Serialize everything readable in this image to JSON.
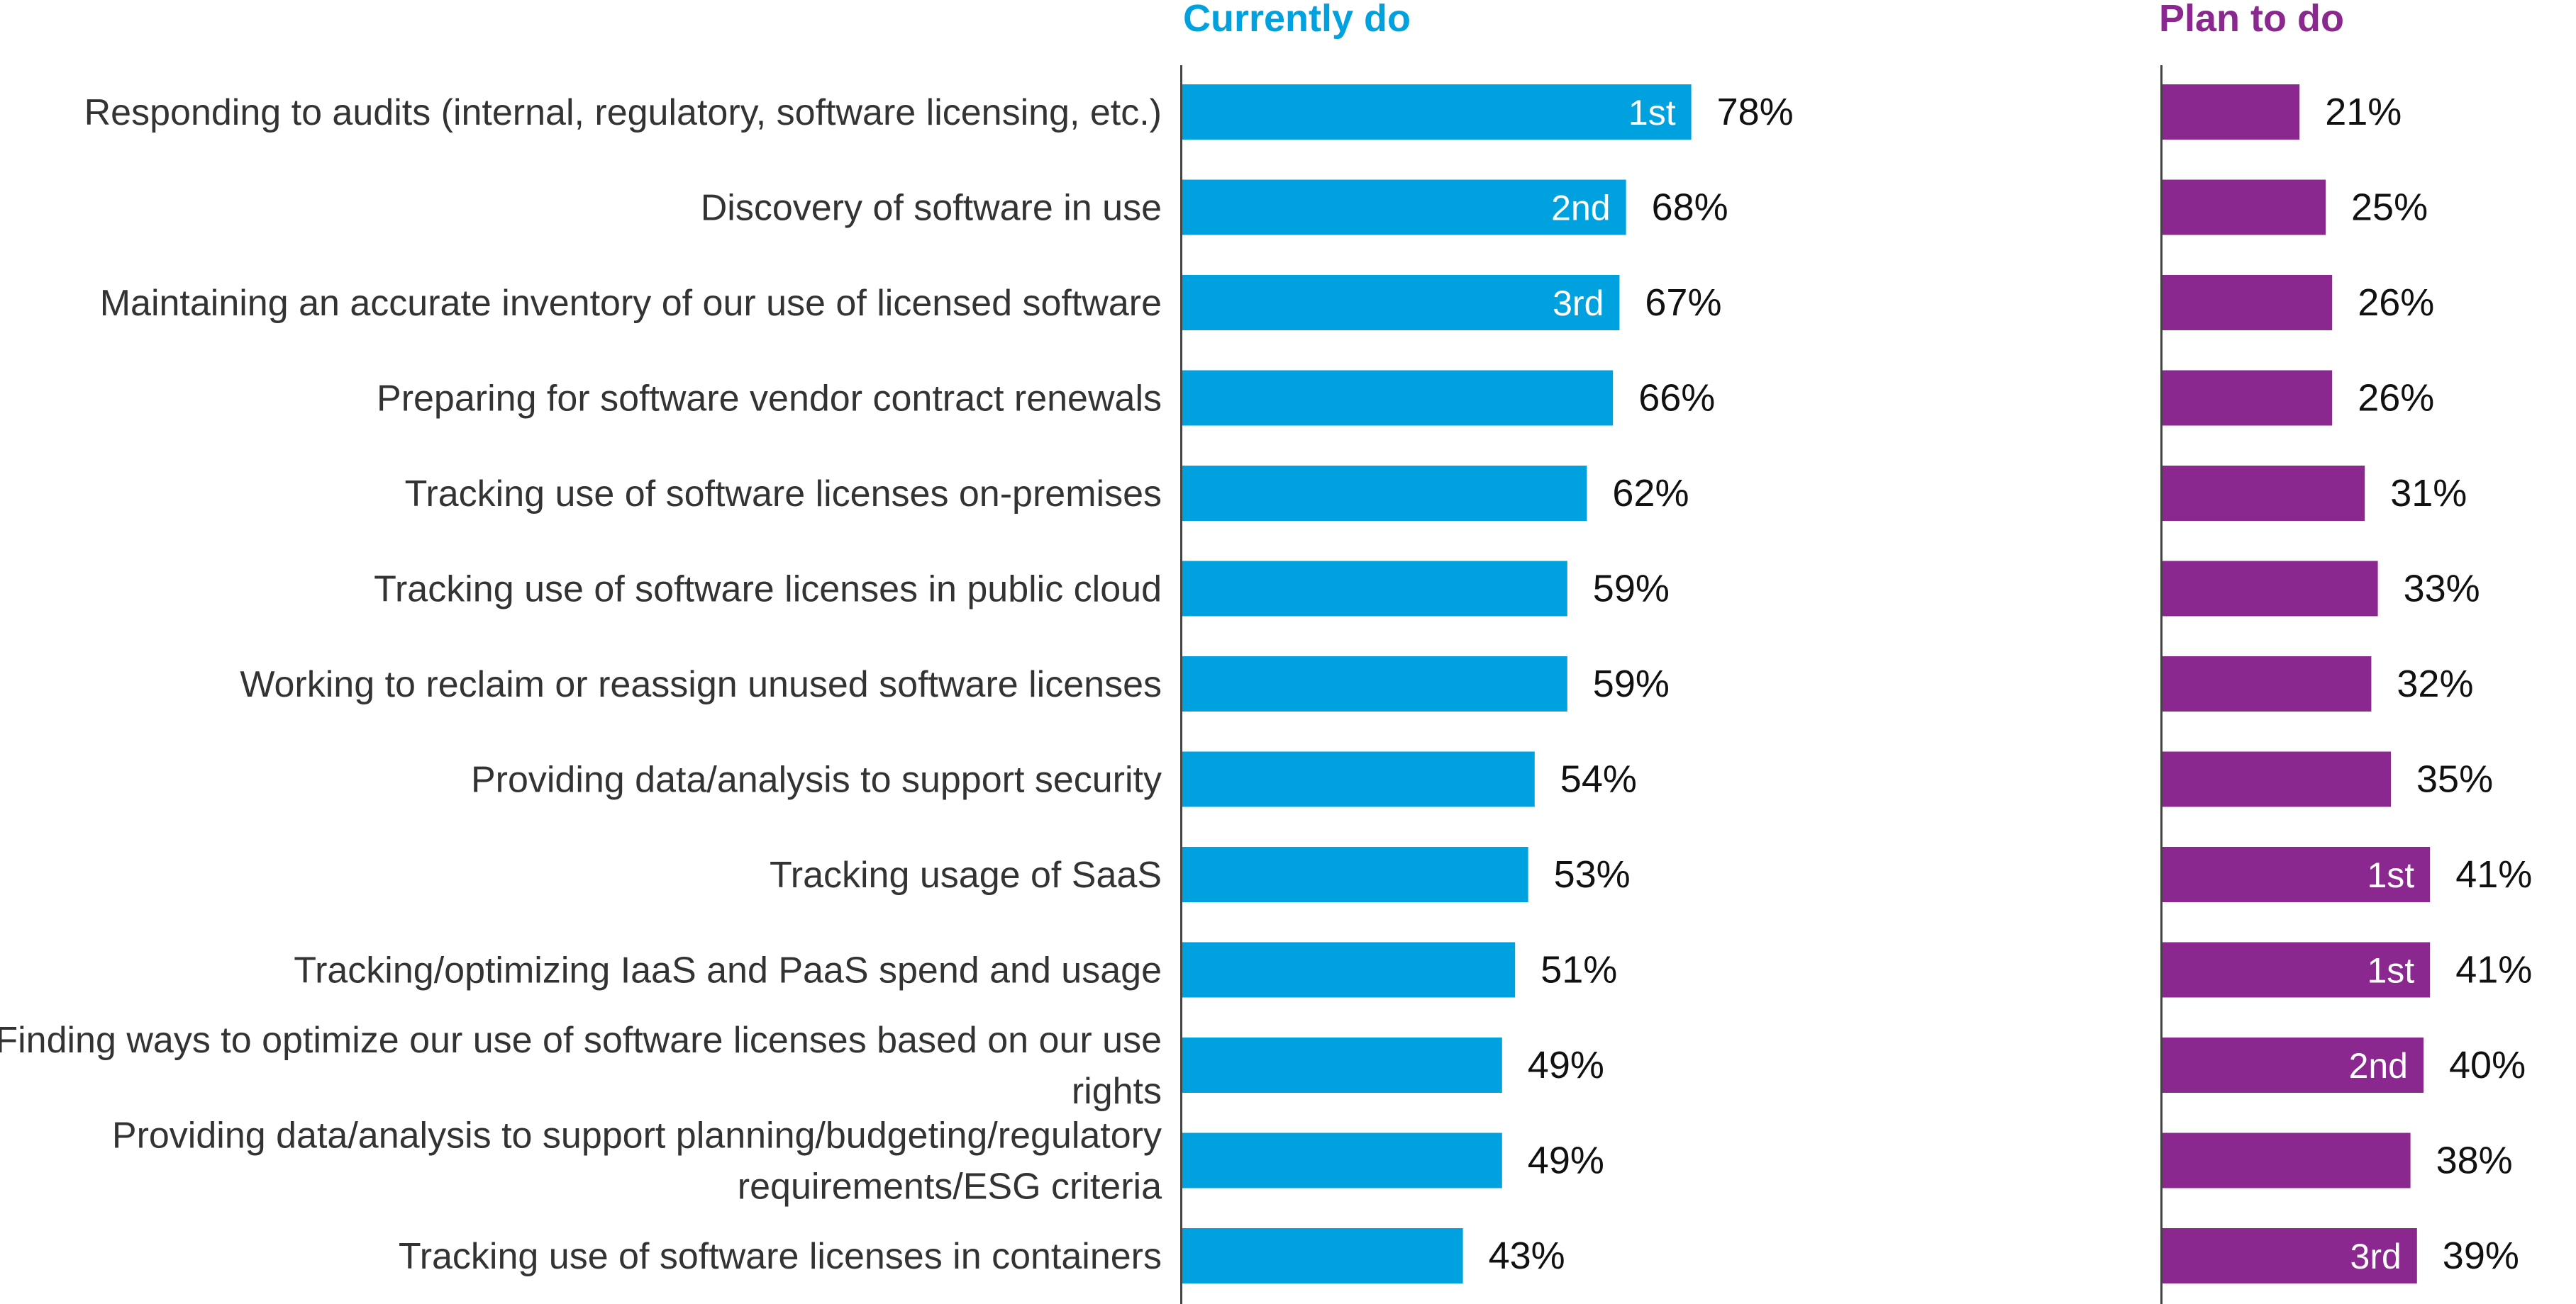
{
  "chart_data": {
    "type": "bar",
    "orientation": "horizontal",
    "categories": [
      [
        "Responding to audits (internal, regulatory, software licensing, etc.)"
      ],
      [
        "Discovery of software in use"
      ],
      [
        "Maintaining an accurate inventory of our use of licensed software"
      ],
      [
        "Preparing for software vendor contract renewals"
      ],
      [
        "Tracking use of software licenses on-premises"
      ],
      [
        "Tracking use of software licenses in public cloud"
      ],
      [
        "Working to reclaim or reassign unused software licenses"
      ],
      [
        "Providing data/analysis to support security"
      ],
      [
        "Tracking usage of SaaS"
      ],
      [
        "Tracking/optimizing IaaS and PaaS spend and usage"
      ],
      [
        "Finding ways to optimize our use of software licenses based on our use",
        "rights"
      ],
      [
        "Providing data/analysis to support planning/budgeting/regulatory",
        "requirements/ESG criteria"
      ],
      [
        "Tracking use of software licenses in containers"
      ]
    ],
    "series": [
      {
        "name": "Currently do",
        "color": "#00a1df",
        "values": [
          78,
          68,
          67,
          66,
          62,
          59,
          59,
          54,
          53,
          51,
          49,
          49,
          43
        ],
        "value_labels": [
          "78%",
          "68%",
          "67%",
          "66%",
          "62%",
          "59%",
          "59%",
          "54%",
          "53%",
          "51%",
          "49%",
          "49%",
          "43%"
        ],
        "rank_labels": [
          "1st",
          "2nd",
          "3rd",
          "",
          "",
          "",
          "",
          "",
          "",
          "",
          "",
          "",
          ""
        ]
      },
      {
        "name": "Plan to do",
        "color": "#8b2890",
        "values": [
          21,
          25,
          26,
          26,
          31,
          33,
          32,
          35,
          41,
          41,
          40,
          38,
          39
        ],
        "value_labels": [
          "21%",
          "25%",
          "26%",
          "26%",
          "31%",
          "33%",
          "32%",
          "35%",
          "41%",
          "41%",
          "40%",
          "38%",
          "39%"
        ],
        "rank_labels": [
          "",
          "",
          "",
          "",
          "",
          "",
          "",
          "",
          "1st",
          "1st",
          "2nd",
          "",
          "3rd"
        ]
      }
    ],
    "xlim": [
      0,
      100
    ],
    "grid": false,
    "legend": "none"
  }
}
